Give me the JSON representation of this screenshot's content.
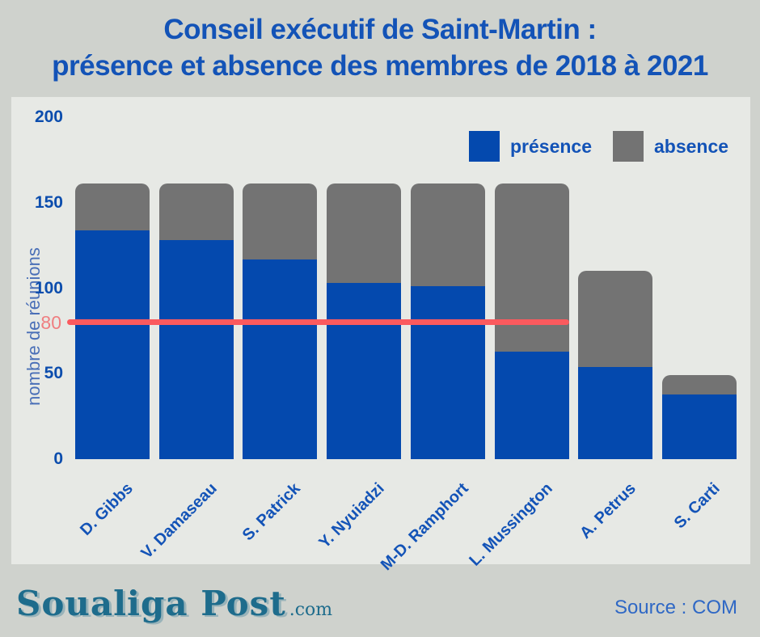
{
  "title": {
    "line1": "Conseil exécutif de Saint-Martin :",
    "line2": "présence et absence des membres de 2018 à 2021"
  },
  "legend": {
    "items": [
      {
        "label": "présence",
        "color": "#0449ae"
      },
      {
        "label": "absence",
        "color": "#737373"
      }
    ]
  },
  "chart_data": {
    "type": "bar",
    "stacked": true,
    "title": "Conseil exécutif de Saint-Martin : présence et absence des membres de 2018 à 2021",
    "categories": [
      "D. Gibbs",
      "V. Damaseau",
      "S. Patrick",
      "Y. Nyuiadzi",
      "M-D. Ramphort",
      "L. Mussington",
      "A. Petrus",
      "S. Carti"
    ],
    "series": [
      {
        "name": "présence",
        "color": "#0449ae",
        "values": [
          134,
          128,
          117,
          103,
          101,
          63,
          54,
          38
        ]
      },
      {
        "name": "absence",
        "color": "#737373",
        "values": [
          27,
          33,
          44,
          58,
          60,
          98,
          56,
          11
        ]
      }
    ],
    "totals": [
      161,
      161,
      161,
      161,
      161,
      161,
      110,
      49
    ],
    "xlabel": "",
    "ylabel": "nombre  de réunions",
    "yticks": [
      0,
      50,
      100,
      150,
      200
    ],
    "ylim": [
      0,
      200
    ],
    "grid": false,
    "legend_position": "top-right",
    "reference_line": {
      "value": 80,
      "label": "80",
      "color": "#fb5a5e",
      "label_color": "#ef7e80"
    }
  },
  "footer": {
    "logo_text": "Soualiga Post",
    "logo_suffix": ".com",
    "source": "Source : COM"
  },
  "colors": {
    "background": "#cfd2cd",
    "panel_background": "#e7e9e5",
    "title_blue": "#1353b7",
    "tick_blue": "#0c4dad",
    "presence_blue": "#0449ae",
    "absence_gray": "#737373",
    "reference_red": "#fb5a5e",
    "logo_teal": "#1e6c8c",
    "source_blue": "#2f68c5"
  }
}
